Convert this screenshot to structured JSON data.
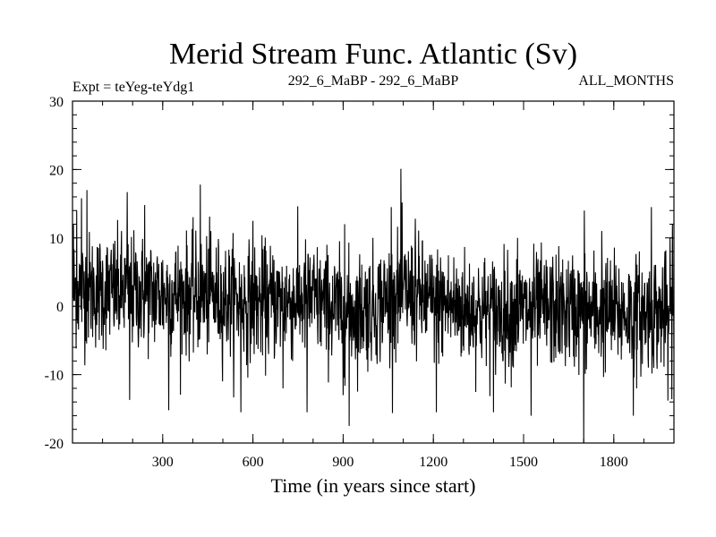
{
  "chart_data": {
    "type": "line",
    "title": "Merid Stream Func. Atlantic (Sv)",
    "subtitle_left": "Expt = teYeg-teYdg1",
    "subtitle_center": "292_6_MaBP - 292_6_MaBP",
    "subtitle_right": "ALL_MONTHS",
    "xlabel": "Time (in years since start)",
    "ylabel": "",
    "xlim": [
      0,
      2000
    ],
    "ylim": [
      -20,
      30
    ],
    "x_ticks": [
      300,
      600,
      900,
      1200,
      1500,
      1800
    ],
    "y_ticks": [
      -20,
      -10,
      0,
      10,
      20,
      30
    ],
    "grid": false,
    "series": [
      {
        "x_start": 1,
        "x_step": 1,
        "baseline": [
          [
            0,
            2.5
          ],
          [
            200,
            2
          ],
          [
            450,
            1.5
          ],
          [
            600,
            0.5
          ],
          [
            800,
            1
          ],
          [
            900,
            -1
          ],
          [
            1000,
            0
          ],
          [
            1100,
            2
          ],
          [
            1200,
            0.5
          ],
          [
            1400,
            -1
          ],
          [
            1600,
            -0.5
          ],
          [
            1800,
            -1
          ],
          [
            2000,
            -1
          ]
        ],
        "noise_sd": 4.2,
        "extremes": [
          [
            3,
            12
          ],
          [
            14,
            14
          ],
          [
            30,
            15.8
          ],
          [
            48,
            17
          ],
          [
            182,
            16.7
          ],
          [
            190,
            -13.7
          ],
          [
            240,
            14.8
          ],
          [
            320,
            -15.2
          ],
          [
            425,
            17.8
          ],
          [
            460,
            11
          ],
          [
            560,
            -15.5
          ],
          [
            600,
            12.5
          ],
          [
            700,
            -12
          ],
          [
            780,
            -15.5
          ],
          [
            900,
            -13
          ],
          [
            905,
            12
          ],
          [
            920,
            -17.5
          ],
          [
            1060,
            14.5
          ],
          [
            1092,
            20.1
          ],
          [
            1140,
            12.8
          ],
          [
            1210,
            -15.5
          ],
          [
            1400,
            -15.5
          ],
          [
            1480,
            10
          ],
          [
            1525,
            -16
          ],
          [
            1700,
            -20
          ],
          [
            1702,
            14
          ],
          [
            1760,
            11
          ],
          [
            1865,
            -16
          ],
          [
            1925,
            14.5
          ],
          [
            1980,
            -13.8
          ],
          [
            1995,
            12
          ]
        ]
      }
    ]
  }
}
